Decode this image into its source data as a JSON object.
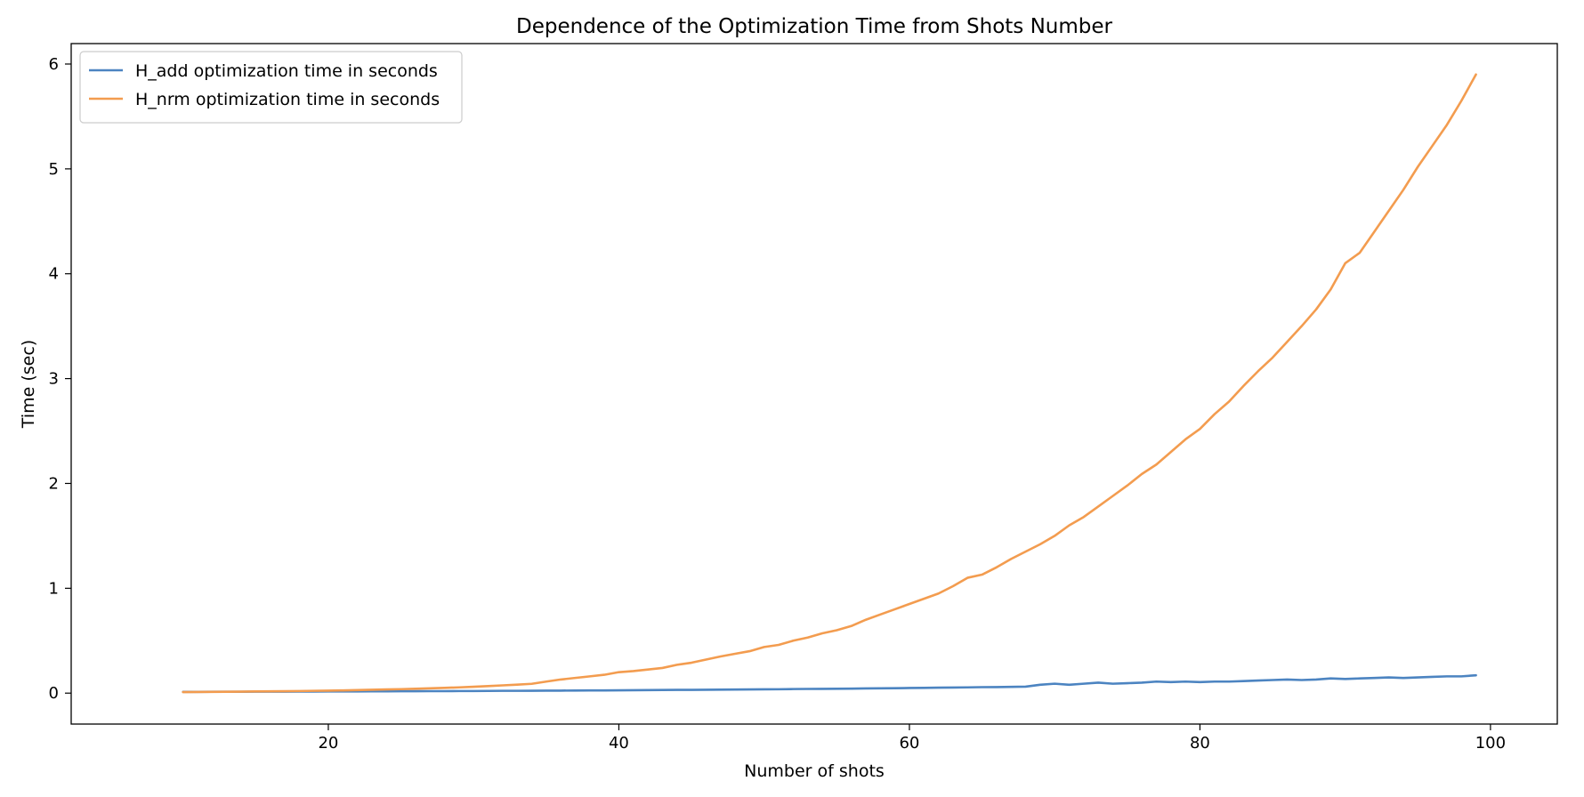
{
  "chart_data": {
    "type": "line",
    "title": "Dependence of the Optimization Time from Shots Number",
    "xlabel": "Number of shots",
    "ylabel": "Time (sec)",
    "xlim": [
      2.3,
      104.6
    ],
    "ylim": [
      -0.295,
      6.195
    ],
    "xticks": [
      20,
      40,
      60,
      80,
      100
    ],
    "yticks": [
      0,
      1,
      2,
      3,
      4,
      5,
      6
    ],
    "grid": false,
    "legend_position": "top-left",
    "x": [
      10,
      11,
      12,
      13,
      14,
      15,
      16,
      17,
      18,
      19,
      20,
      21,
      22,
      23,
      24,
      25,
      26,
      27,
      28,
      29,
      30,
      31,
      32,
      33,
      34,
      35,
      36,
      37,
      38,
      39,
      40,
      41,
      42,
      43,
      44,
      45,
      46,
      47,
      48,
      49,
      50,
      51,
      52,
      53,
      54,
      55,
      56,
      57,
      58,
      59,
      60,
      61,
      62,
      63,
      64,
      65,
      66,
      67,
      68,
      69,
      70,
      71,
      72,
      73,
      74,
      75,
      76,
      77,
      78,
      79,
      80,
      81,
      82,
      83,
      84,
      85,
      86,
      87,
      88,
      89,
      90,
      91,
      92,
      93,
      94,
      95,
      96,
      97,
      98,
      99
    ],
    "series": [
      {
        "name": "H_add optimization time in seconds",
        "color": "#4c84c1",
        "values": [
          0.012,
          0.012,
          0.013,
          0.013,
          0.013,
          0.014,
          0.014,
          0.014,
          0.015,
          0.015,
          0.016,
          0.016,
          0.016,
          0.017,
          0.017,
          0.018,
          0.018,
          0.019,
          0.019,
          0.02,
          0.02,
          0.021,
          0.022,
          0.022,
          0.023,
          0.024,
          0.024,
          0.025,
          0.026,
          0.026,
          0.027,
          0.028,
          0.029,
          0.03,
          0.031,
          0.031,
          0.032,
          0.033,
          0.034,
          0.035,
          0.036,
          0.037,
          0.039,
          0.04,
          0.041,
          0.042,
          0.043,
          0.045,
          0.046,
          0.047,
          0.049,
          0.05,
          0.052,
          0.053,
          0.055,
          0.057,
          0.058,
          0.06,
          0.062,
          0.08,
          0.09,
          0.08,
          0.09,
          0.1,
          0.09,
          0.095,
          0.1,
          0.11,
          0.105,
          0.11,
          0.105,
          0.11,
          0.11,
          0.115,
          0.12,
          0.125,
          0.13,
          0.125,
          0.13,
          0.14,
          0.135,
          0.14,
          0.145,
          0.15,
          0.145,
          0.15,
          0.155,
          0.16,
          0.16,
          0.17
        ]
      },
      {
        "name": "H_nrm optimization time in seconds",
        "color": "#f39c4f",
        "values": [
          0.01,
          0.011,
          0.012,
          0.013,
          0.014,
          0.016,
          0.017,
          0.018,
          0.02,
          0.022,
          0.024,
          0.026,
          0.029,
          0.032,
          0.035,
          0.038,
          0.042,
          0.046,
          0.05,
          0.055,
          0.061,
          0.067,
          0.074,
          0.081,
          0.089,
          0.11,
          0.13,
          0.145,
          0.16,
          0.175,
          0.2,
          0.21,
          0.225,
          0.24,
          0.27,
          0.29,
          0.32,
          0.35,
          0.375,
          0.4,
          0.44,
          0.46,
          0.5,
          0.53,
          0.57,
          0.6,
          0.64,
          0.7,
          0.75,
          0.8,
          0.85,
          0.9,
          0.95,
          1.02,
          1.1,
          1.13,
          1.2,
          1.28,
          1.35,
          1.42,
          1.5,
          1.6,
          1.68,
          1.78,
          1.88,
          1.98,
          2.09,
          2.18,
          2.3,
          2.42,
          2.52,
          2.66,
          2.78,
          2.93,
          3.07,
          3.2,
          3.35,
          3.5,
          3.66,
          3.85,
          4.1,
          4.2,
          4.4,
          4.6,
          4.8,
          5.02,
          5.22,
          5.42,
          5.65,
          5.9
        ]
      }
    ]
  }
}
